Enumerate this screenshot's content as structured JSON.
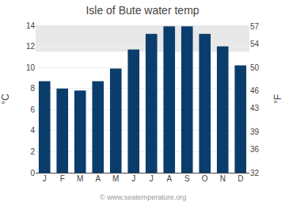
{
  "chart_data": {
    "type": "bar",
    "title": "Isle of Bute water temp",
    "categories": [
      "J",
      "F",
      "M",
      "A",
      "M",
      "J",
      "J",
      "A",
      "S",
      "O",
      "N",
      "D"
    ],
    "values": [
      8.7,
      8.0,
      7.8,
      8.7,
      9.9,
      11.7,
      13.2,
      13.9,
      13.9,
      13.2,
      12.0,
      10.2
    ],
    "color": "#0a3d6b",
    "ylabel": "°C",
    "y2label": "°F",
    "ylim": [
      0,
      14
    ],
    "yticks": [
      0,
      2,
      4,
      6,
      8,
      10,
      12,
      14
    ],
    "y2lim": [
      32,
      57.2
    ],
    "y2ticks": [
      32,
      36,
      39,
      43,
      46,
      50,
      54,
      57
    ],
    "band": {
      "low": 11.5,
      "high": 14.0,
      "color": "#e8e8e8"
    },
    "annotation": "© www.seatemperature.org",
    "grid": true
  }
}
